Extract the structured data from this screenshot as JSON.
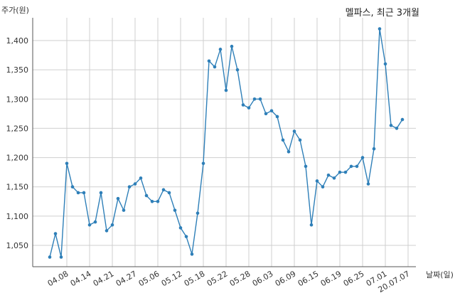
{
  "chart_data": {
    "type": "line",
    "title": "멜파스, 최근 3개월",
    "ylabel": "주가(원)",
    "xlabel": "날짜(일)",
    "ylim": [
      1000,
      1450
    ],
    "yticks": [
      1050,
      1100,
      1150,
      1200,
      1250,
      1300,
      1350,
      1400
    ],
    "ytick_labels": [
      "1,050",
      "1,100",
      "1,150",
      "1,200",
      "1,250",
      "1,300",
      "1,350",
      "1,400"
    ],
    "xtick_labels": [
      "04.08",
      "04.14",
      "04.21",
      "04.27",
      "05.06",
      "05.12",
      "05.18",
      "05.22",
      "05.28",
      "06.03",
      "06.09",
      "06.15",
      "06.19",
      "06.25",
      "07.01",
      "20.07.07"
    ],
    "xtick_index": [
      3,
      7,
      11,
      15,
      19,
      23,
      27,
      31,
      35,
      39,
      43,
      47,
      51,
      55,
      59,
      63
    ],
    "grid": true,
    "line_color": "#2e7fb8",
    "series": [
      {
        "values": [
          1030,
          1070,
          1030,
          1190,
          1150,
          1140,
          1140,
          1085,
          1090,
          1140,
          1075,
          1085,
          1130,
          1110,
          1150,
          1155,
          1165,
          1135,
          1125,
          1125,
          1145,
          1140,
          1110,
          1080,
          1065,
          1035,
          1105,
          1190,
          1365,
          1355,
          1385,
          1315,
          1390,
          1350,
          1290,
          1285,
          1300,
          1300,
          1275,
          1280,
          1270,
          1230,
          1210,
          1245,
          1230,
          1185,
          1085,
          1160,
          1150,
          1170,
          1165,
          1175,
          1175,
          1185,
          1185,
          1200,
          1155,
          1215,
          1420,
          1360,
          1255,
          1250,
          1265
        ]
      }
    ]
  }
}
